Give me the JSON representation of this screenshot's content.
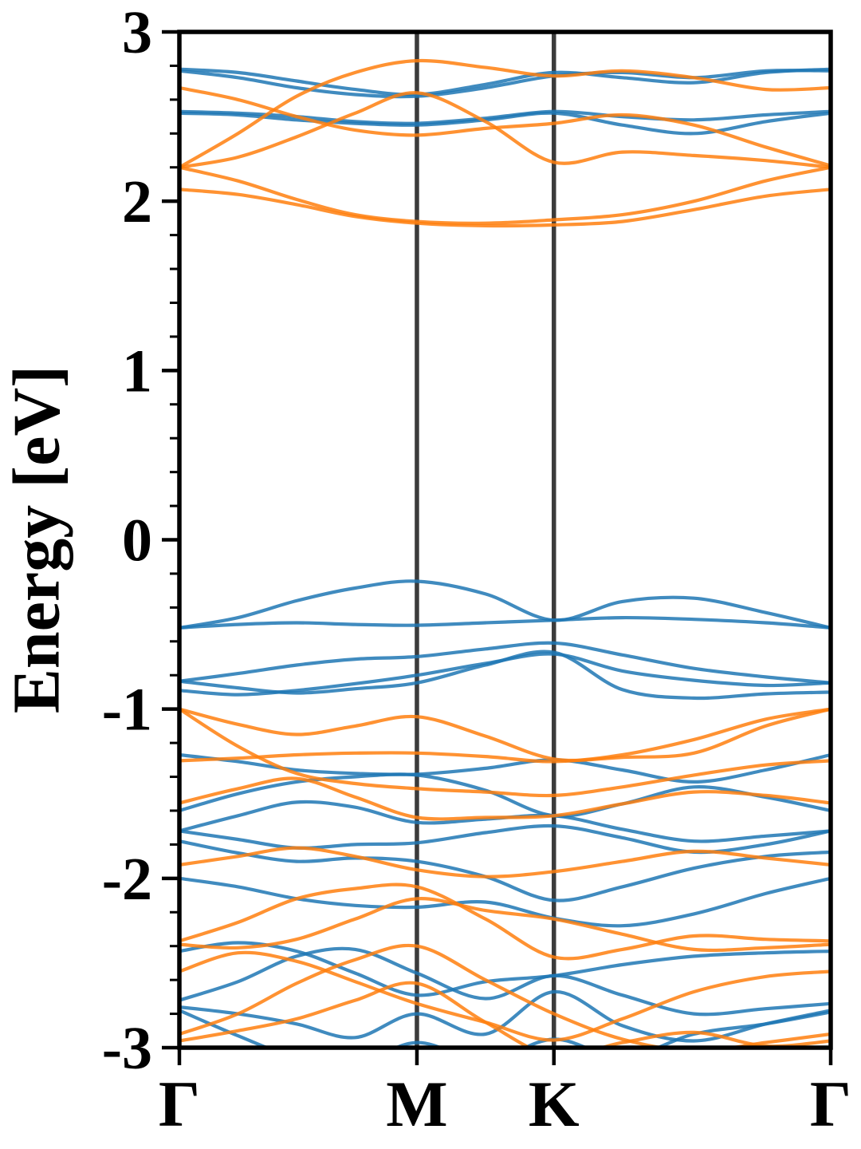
{
  "figure": {
    "title": "",
    "ylabel": "Energy [eV]"
  },
  "chart_data": {
    "type": "line",
    "subtype": "band-structure",
    "title": "",
    "xlabel": "",
    "ylabel": "Energy [eV]",
    "ylim": [
      -3,
      3
    ],
    "y_major_ticks": [
      3,
      2,
      1,
      0,
      -1,
      -2,
      -3
    ],
    "y_tick_labels": [
      "3",
      "2",
      "1",
      "0",
      "-1",
      "-2",
      "-3"
    ],
    "y_minor_tick_step": 0.2,
    "grid": false,
    "legend": "none",
    "kpath": {
      "labels": [
        "Γ",
        "M",
        "K",
        "Γ"
      ],
      "positions": [
        0,
        0.3647,
        0.575,
        1.0
      ]
    },
    "guide_lines": {
      "positions": [
        0.3647,
        0.575
      ],
      "color": "#3b3b3b"
    },
    "k_samples": [
      0,
      0.09,
      0.18,
      0.27,
      0.3647,
      0.47,
      0.575,
      0.68,
      0.79,
      0.9,
      1.0
    ],
    "series": [
      {
        "name": "bands-blue",
        "color": "#1f77b4",
        "bands": [
          [
            2.78,
            2.76,
            2.71,
            2.66,
            2.63,
            2.69,
            2.76,
            2.73,
            2.7,
            2.76,
            2.78
          ],
          [
            2.77,
            2.73,
            2.67,
            2.63,
            2.62,
            2.67,
            2.74,
            2.76,
            2.73,
            2.77,
            2.77
          ],
          [
            2.53,
            2.52,
            2.5,
            2.47,
            2.46,
            2.49,
            2.53,
            2.5,
            2.48,
            2.51,
            2.53
          ],
          [
            2.52,
            2.51,
            2.48,
            2.46,
            2.45,
            2.48,
            2.52,
            2.45,
            2.4,
            2.47,
            2.52
          ],
          [
            -0.52,
            -0.46,
            -0.36,
            -0.285,
            -0.245,
            -0.32,
            -0.475,
            -0.365,
            -0.345,
            -0.43,
            -0.52
          ],
          [
            -0.52,
            -0.5,
            -0.49,
            -0.5,
            -0.505,
            -0.49,
            -0.475,
            -0.46,
            -0.47,
            -0.49,
            -0.52
          ],
          [
            -0.835,
            -0.79,
            -0.74,
            -0.705,
            -0.69,
            -0.645,
            -0.61,
            -0.68,
            -0.76,
            -0.81,
            -0.845
          ],
          [
            -0.835,
            -0.875,
            -0.905,
            -0.88,
            -0.845,
            -0.74,
            -0.665,
            -0.885,
            -0.935,
            -0.91,
            -0.9
          ],
          [
            -0.89,
            -0.915,
            -0.89,
            -0.85,
            -0.8,
            -0.73,
            -0.675,
            -0.775,
            -0.83,
            -0.86,
            -0.845
          ],
          [
            -1.27,
            -1.31,
            -1.36,
            -1.38,
            -1.385,
            -1.35,
            -1.3,
            -1.36,
            -1.43,
            -1.36,
            -1.27
          ],
          [
            -1.6,
            -1.5,
            -1.43,
            -1.4,
            -1.39,
            -1.48,
            -1.63,
            -1.56,
            -1.46,
            -1.52,
            -1.6
          ],
          [
            -1.72,
            -1.63,
            -1.55,
            -1.58,
            -1.67,
            -1.65,
            -1.63,
            -1.71,
            -1.78,
            -1.75,
            -1.72
          ],
          [
            -1.72,
            -1.77,
            -1.82,
            -1.8,
            -1.79,
            -1.73,
            -1.69,
            -1.76,
            -1.845,
            -1.8,
            -1.72
          ],
          [
            -1.78,
            -1.85,
            -1.9,
            -1.88,
            -1.9,
            -1.99,
            -2.13,
            -2.05,
            -1.94,
            -1.87,
            -1.845
          ],
          [
            -2.0,
            -2.05,
            -2.12,
            -2.16,
            -2.17,
            -2.14,
            -2.235,
            -2.28,
            -2.21,
            -2.09,
            -2.0
          ],
          [
            -2.43,
            -2.38,
            -2.43,
            -2.56,
            -2.69,
            -2.61,
            -2.575,
            -2.51,
            -2.46,
            -2.44,
            -2.43
          ],
          [
            -2.72,
            -2.61,
            -2.46,
            -2.42,
            -2.56,
            -2.71,
            -2.575,
            -2.69,
            -2.8,
            -2.77,
            -2.74
          ],
          [
            -2.76,
            -2.8,
            -2.86,
            -2.94,
            -2.8,
            -2.92,
            -2.67,
            -2.87,
            -2.96,
            -2.86,
            -2.78
          ],
          [
            -2.78,
            -2.93,
            -3.06,
            -3.1,
            -2.97,
            -3.08,
            -2.95,
            -3.06,
            -2.92,
            -2.86,
            -2.79
          ]
        ]
      },
      {
        "name": "bands-orange",
        "color": "#ff7f0e",
        "bands": [
          [
            2.2,
            2.4,
            2.62,
            2.76,
            2.83,
            2.79,
            2.74,
            2.77,
            2.73,
            2.66,
            2.67
          ],
          [
            2.67,
            2.6,
            2.5,
            2.42,
            2.39,
            2.43,
            2.46,
            2.51,
            2.45,
            2.32,
            2.21
          ],
          [
            2.2,
            2.26,
            2.38,
            2.52,
            2.64,
            2.47,
            2.23,
            2.29,
            2.27,
            2.24,
            2.2
          ],
          [
            2.07,
            2.04,
            1.98,
            1.91,
            1.87,
            1.855,
            1.86,
            1.88,
            1.95,
            2.03,
            2.07
          ],
          [
            2.2,
            2.12,
            2.01,
            1.92,
            1.88,
            1.87,
            1.89,
            1.92,
            2.0,
            2.12,
            2.2
          ],
          [
            -1.0,
            -1.09,
            -1.15,
            -1.1,
            -1.045,
            -1.16,
            -1.295,
            -1.285,
            -1.26,
            -1.1,
            -1.0
          ],
          [
            -1.305,
            -1.29,
            -1.27,
            -1.26,
            -1.26,
            -1.28,
            -1.31,
            -1.27,
            -1.18,
            -1.06,
            -1.0
          ],
          [
            -1.0,
            -1.22,
            -1.38,
            -1.44,
            -1.47,
            -1.49,
            -1.51,
            -1.46,
            -1.39,
            -1.33,
            -1.305
          ],
          [
            -1.555,
            -1.47,
            -1.41,
            -1.52,
            -1.64,
            -1.64,
            -1.63,
            -1.56,
            -1.49,
            -1.51,
            -1.555
          ],
          [
            -1.92,
            -1.87,
            -1.82,
            -1.87,
            -1.95,
            -1.99,
            -1.96,
            -1.9,
            -1.84,
            -1.88,
            -1.92
          ],
          [
            -2.37,
            -2.26,
            -2.12,
            -2.06,
            -2.05,
            -2.24,
            -2.465,
            -2.42,
            -2.34,
            -2.36,
            -2.37
          ],
          [
            -2.39,
            -2.41,
            -2.36,
            -2.24,
            -2.12,
            -2.19,
            -2.24,
            -2.33,
            -2.42,
            -2.41,
            -2.39
          ],
          [
            -2.55,
            -2.44,
            -2.49,
            -2.61,
            -2.74,
            -2.85,
            -2.955,
            -2.83,
            -2.67,
            -2.58,
            -2.55
          ],
          [
            -2.92,
            -2.8,
            -2.62,
            -2.48,
            -2.4,
            -2.6,
            -2.8,
            -2.95,
            -3.02,
            -2.97,
            -2.92
          ],
          [
            -2.96,
            -2.9,
            -2.83,
            -2.72,
            -2.62,
            -2.85,
            -3.05,
            -2.97,
            -2.91,
            -2.99,
            -2.96
          ]
        ]
      }
    ]
  },
  "style": {
    "background": "#ffffff",
    "axis_color": "#000000",
    "band_line_width": 4.2,
    "band_opacity": 0.85
  }
}
